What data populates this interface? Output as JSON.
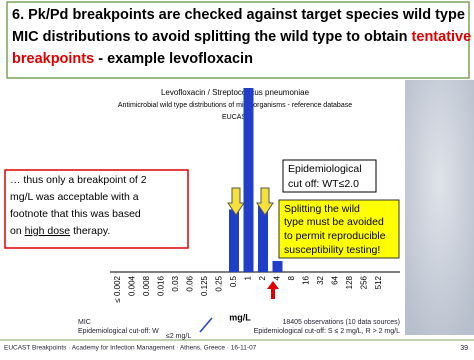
{
  "title": {
    "line1": "6. Pk/Pd breakpoints are checked against target species wild type",
    "line2": "MIC distributions to avoid splitting the wild type to obtain",
    "line2_red": "tentative",
    "line3_red": "breakpoints",
    "line3": "- example levofloxacin"
  },
  "chart": {
    "title": "Levofloxacin / Streptococcus pneumoniae",
    "subtitle": "Antimicrobial wild type distributions of microorganisms - reference database",
    "source": "EUCAST",
    "categories": [
      "≤ 0.002",
      "0.004",
      "0.008",
      "0.016",
      "0.03",
      "0.06",
      "0.125",
      "0.25",
      "0.5",
      "1",
      "2",
      "4",
      "8",
      "16",
      "32",
      "64",
      "128",
      "256",
      "512"
    ],
    "values": [
      0,
      0,
      0,
      0,
      0,
      0,
      0,
      0,
      17,
      50,
      18,
      3,
      0,
      0,
      0,
      0,
      0,
      0,
      0
    ],
    "ylim": [
      0,
      50
    ],
    "color": "#1f3fc8",
    "x_label": "mg/L",
    "mic_label": "MIC",
    "ecoff_label": "Epidemiological cut-off: W",
    "ecoff_value": "≤2 mg/L",
    "observations": "18405 observations (10 data sources)",
    "breakpoint_note": "Epidemiological cut-off: S ≤ 2 mg/L, R > 2 mg/L"
  },
  "callouts": {
    "left_1": "… thus only a breakpoint of 2",
    "left_2": "mg/L was acceptable with a",
    "left_3": "footnote that this was based",
    "left_4": "on",
    "left_4_u": "high dose",
    "left_4_end": "therapy.",
    "ecoff_1": "Epidemiological",
    "ecoff_2": "cut off: WT≤2.0",
    "split_1": "Splitting the wild",
    "split_2": "type must be avoided",
    "split_3": "to permit reproducible",
    "split_4": "susceptibility testing!"
  },
  "footer": {
    "text": "EUCAST Breakpoints · Academy for Infection Management · Athens, Greece · 16-11-07",
    "page": "39"
  }
}
